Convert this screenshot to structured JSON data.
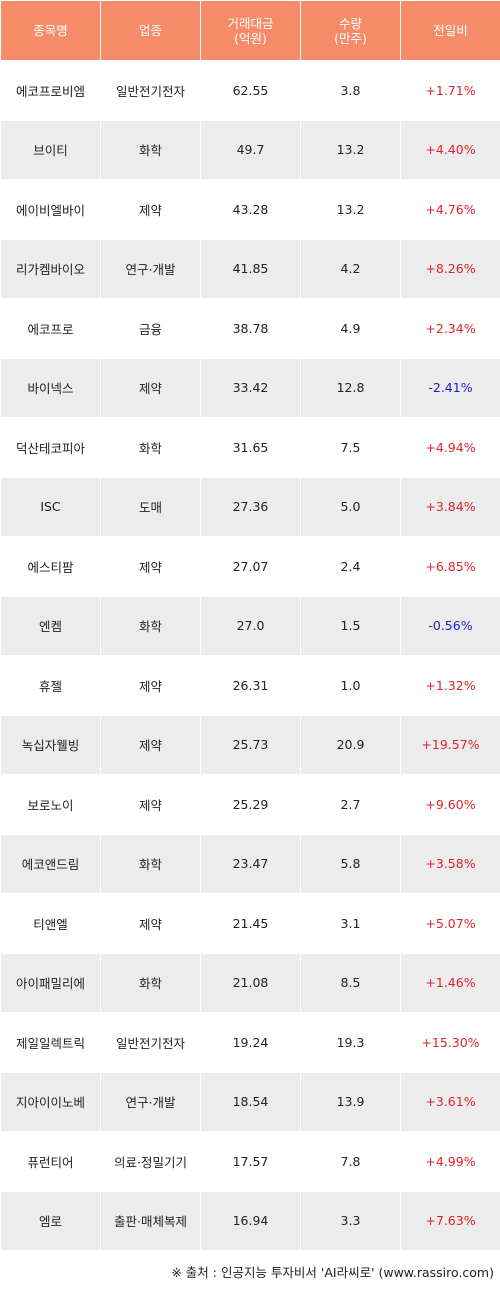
{
  "colors": {
    "header_bg": "#f58b68",
    "up": "#e0242d",
    "down": "#1f1fc8",
    "stripe": "#ececec"
  },
  "header": {
    "name": "종목명",
    "sector": "업종",
    "amount_line1": "거래대금",
    "amount_line2": "(억원)",
    "qty_line1": "수량",
    "qty_line2": "(만주)",
    "change": "전일비"
  },
  "rows": [
    {
      "name": "에코프로비엠",
      "sector": "일반전기전자",
      "amount": "62.55",
      "qty": "3.8",
      "change": "+1.71%",
      "dir": "up"
    },
    {
      "name": "브이티",
      "sector": "화학",
      "amount": "49.7",
      "qty": "13.2",
      "change": "+4.40%",
      "dir": "up"
    },
    {
      "name": "에이비엘바이",
      "sector": "제약",
      "amount": "43.28",
      "qty": "13.2",
      "change": "+4.76%",
      "dir": "up"
    },
    {
      "name": "리가켐바이오",
      "sector": "연구·개발",
      "amount": "41.85",
      "qty": "4.2",
      "change": "+8.26%",
      "dir": "up"
    },
    {
      "name": "에코프로",
      "sector": "금융",
      "amount": "38.78",
      "qty": "4.9",
      "change": "+2.34%",
      "dir": "up"
    },
    {
      "name": "바이넥스",
      "sector": "제약",
      "amount": "33.42",
      "qty": "12.8",
      "change": "-2.41%",
      "dir": "down"
    },
    {
      "name": "덕산테코피아",
      "sector": "화학",
      "amount": "31.65",
      "qty": "7.5",
      "change": "+4.94%",
      "dir": "up"
    },
    {
      "name": "ISC",
      "sector": "도매",
      "amount": "27.36",
      "qty": "5.0",
      "change": "+3.84%",
      "dir": "up"
    },
    {
      "name": "에스티팜",
      "sector": "제약",
      "amount": "27.07",
      "qty": "2.4",
      "change": "+6.85%",
      "dir": "up"
    },
    {
      "name": "엔켐",
      "sector": "화학",
      "amount": "27.0",
      "qty": "1.5",
      "change": "-0.56%",
      "dir": "down"
    },
    {
      "name": "휴젤",
      "sector": "제약",
      "amount": "26.31",
      "qty": "1.0",
      "change": "+1.32%",
      "dir": "up"
    },
    {
      "name": "녹십자웰빙",
      "sector": "제약",
      "amount": "25.73",
      "qty": "20.9",
      "change": "+19.57%",
      "dir": "up"
    },
    {
      "name": "보로노이",
      "sector": "제약",
      "amount": "25.29",
      "qty": "2.7",
      "change": "+9.60%",
      "dir": "up"
    },
    {
      "name": "에코앤드림",
      "sector": "화학",
      "amount": "23.47",
      "qty": "5.8",
      "change": "+3.58%",
      "dir": "up"
    },
    {
      "name": "티앤엘",
      "sector": "제약",
      "amount": "21.45",
      "qty": "3.1",
      "change": "+5.07%",
      "dir": "up"
    },
    {
      "name": "아이패밀리에",
      "sector": "화학",
      "amount": "21.08",
      "qty": "8.5",
      "change": "+1.46%",
      "dir": "up"
    },
    {
      "name": "제일일렉트릭",
      "sector": "일반전기전자",
      "amount": "19.24",
      "qty": "19.3",
      "change": "+15.30%",
      "dir": "up"
    },
    {
      "name": "지아이이노베",
      "sector": "연구·개발",
      "amount": "18.54",
      "qty": "13.9",
      "change": "+3.61%",
      "dir": "up"
    },
    {
      "name": "퓨런티어",
      "sector": "의료·정밀기기",
      "amount": "17.57",
      "qty": "7.8",
      "change": "+4.99%",
      "dir": "up"
    },
    {
      "name": "엠로",
      "sector": "출판·매체복제",
      "amount": "16.94",
      "qty": "3.3",
      "change": "+7.63%",
      "dir": "up"
    }
  ],
  "footer": {
    "source": "※ 출처 : 인공지능 투자비서 'AI라씨로' (www.rassiro.com)"
  }
}
